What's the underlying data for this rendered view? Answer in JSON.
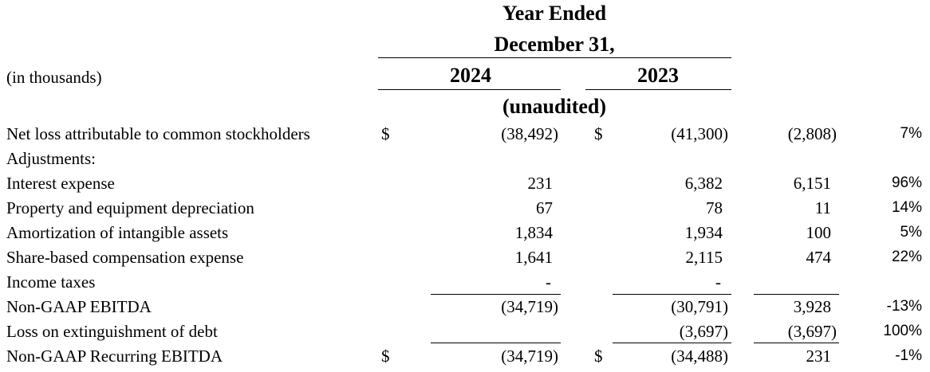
{
  "header": {
    "title_line1": "Year Ended",
    "title_line2": "December 31,",
    "units": "(in thousands)",
    "years": [
      "2024",
      "2023"
    ],
    "note": "(unaudited)"
  },
  "table": {
    "rows": [
      {
        "label": "Net loss attributable to common stockholders",
        "cur1": "$",
        "v2024": "(38,492)",
        "cur2": "$",
        "v2023": "(41,300)",
        "change": "(2,808)",
        "pct": "7%"
      },
      {
        "label": "Adjustments:"
      },
      {
        "label": "Interest expense",
        "v2024": "231",
        "v2023": "6,382",
        "change": "6,151",
        "pct": "96%"
      },
      {
        "label": "Property and equipment depreciation",
        "v2024": "67",
        "v2023": "78",
        "change": "11",
        "pct": "14%"
      },
      {
        "label": "Amortization of intangible assets",
        "v2024": "1,834",
        "v2023": "1,934",
        "change": "100",
        "pct": "5%"
      },
      {
        "label": "Share-based compensation expense",
        "v2024": "1,641",
        "v2023": "2,115",
        "change": "474",
        "pct": "22%"
      },
      {
        "label": "Income taxes",
        "v2024": "-",
        "v2023": "-"
      },
      {
        "label": "Non-GAAP EBITDA",
        "v2024": "(34,719)",
        "v2023": "(30,791)",
        "change": "3,928",
        "pct": "-13%"
      },
      {
        "label": "Loss on extinguishment of debt",
        "v2023": "(3,697)",
        "change": "(3,697)",
        "pct": "100%"
      },
      {
        "label": "Non-GAAP Recurring EBITDA",
        "cur1": "$",
        "v2024": "(34,719)",
        "cur2": "$",
        "v2023": "(34,488)",
        "change": "231",
        "pct": "-1%"
      }
    ]
  }
}
